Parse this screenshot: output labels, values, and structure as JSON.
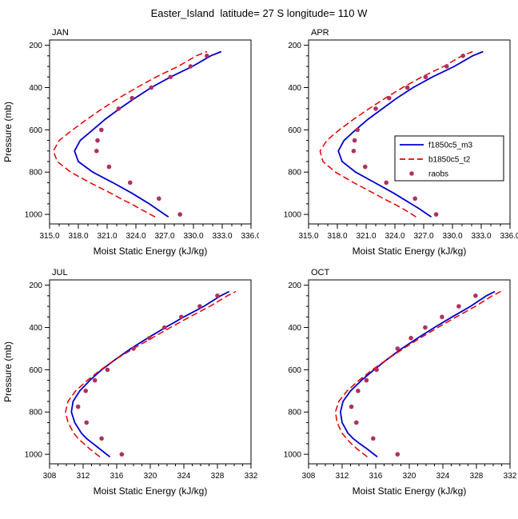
{
  "header": {
    "title": "Easter_Island  latitude= 27 S longitude= 110 W"
  },
  "colors": {
    "model": "#0000cd",
    "control": "#e60000",
    "obs": "#b03060",
    "frame": "#000000"
  },
  "legend": {
    "entries": [
      "f1850c5_m3",
      "b1850c5_t2",
      "raobs"
    ]
  },
  "chart_data": [
    {
      "type": "line",
      "title": "JAN",
      "xlabel": "Moist Static Energy (kJ/kg)",
      "ylabel": "Pressure (mb)",
      "show_ylabel": true,
      "show_legend": false,
      "xlim": [
        315,
        336
      ],
      "xticks": [
        315,
        318,
        321,
        324,
        327,
        330,
        333,
        336
      ],
      "xtick_decimals": 1,
      "xtick_minor_step": 1,
      "yticks": [
        200,
        400,
        600,
        800,
        1000
      ],
      "ytick_minor_step": 50,
      "ylim": [
        1045,
        175
      ],
      "series": [
        {
          "name": "f1850c5_m3",
          "type": "solid",
          "color": "#0000cd",
          "points": [
            [
              1012,
              327.4
            ],
            [
              1000,
              327.0
            ],
            [
              975,
              326.2
            ],
            [
              950,
              325.4
            ],
            [
              925,
              324.5
            ],
            [
              900,
              323.6
            ],
            [
              850,
              321.6
            ],
            [
              800,
              319.5
            ],
            [
              750,
              318.0
            ],
            [
              700,
              317.6
            ],
            [
              650,
              318.2
            ],
            [
              600,
              319.5
            ],
            [
              550,
              320.8
            ],
            [
              500,
              322.3
            ],
            [
              450,
              323.9
            ],
            [
              400,
              325.6
            ],
            [
              350,
              327.6
            ],
            [
              300,
              329.9
            ],
            [
              250,
              331.8
            ],
            [
              230,
              332.9
            ]
          ]
        },
        {
          "name": "b1850c5_t2",
          "type": "dashed",
          "color": "#e60000",
          "points": [
            [
              1012,
              326.0
            ],
            [
              1000,
              325.5
            ],
            [
              975,
              324.5
            ],
            [
              950,
              323.5
            ],
            [
              925,
              322.4
            ],
            [
              900,
              321.4
            ],
            [
              850,
              319.2
            ],
            [
              800,
              317.2
            ],
            [
              750,
              315.8
            ],
            [
              700,
              315.4
            ],
            [
              650,
              316.0
            ],
            [
              600,
              317.4
            ],
            [
              550,
              318.9
            ],
            [
              500,
              320.5
            ],
            [
              450,
              322.2
            ],
            [
              400,
              324.1
            ],
            [
              350,
              326.1
            ],
            [
              300,
              328.4
            ],
            [
              250,
              330.3
            ],
            [
              230,
              331.4
            ]
          ]
        },
        {
          "name": "raobs",
          "type": "dots",
          "color": "#b03060",
          "points": [
            [
              1000,
              328.6
            ],
            [
              925,
              326.4
            ],
            [
              850,
              323.4
            ],
            [
              775,
              321.2
            ],
            [
              700,
              319.9
            ],
            [
              650,
              320.0
            ],
            [
              600,
              320.4
            ],
            [
              500,
              322.2
            ],
            [
              450,
              323.6
            ],
            [
              400,
              325.6
            ],
            [
              350,
              327.6
            ],
            [
              300,
              329.7
            ],
            [
              250,
              331.4
            ]
          ]
        }
      ]
    },
    {
      "type": "line",
      "title": "APR",
      "xlabel": "Moist Static Energy (kJ/kg)",
      "ylabel": "Pressure (mb)",
      "show_ylabel": false,
      "show_legend": true,
      "xlim": [
        315,
        336
      ],
      "xticks": [
        315,
        318,
        321,
        324,
        327,
        330,
        333,
        336
      ],
      "xtick_decimals": 1,
      "xtick_minor_step": 1,
      "yticks": [
        200,
        400,
        600,
        800,
        1000
      ],
      "ytick_minor_step": 50,
      "ylim": [
        1045,
        175
      ],
      "series": [
        {
          "name": "f1850c5_m3",
          "type": "solid",
          "color": "#0000cd",
          "points": [
            [
              1012,
              327.8
            ],
            [
              1000,
              327.4
            ],
            [
              975,
              326.6
            ],
            [
              950,
              325.7
            ],
            [
              925,
              324.8
            ],
            [
              900,
              323.9
            ],
            [
              850,
              321.9
            ],
            [
              800,
              319.9
            ],
            [
              750,
              318.5
            ],
            [
              700,
              318.1
            ],
            [
              650,
              318.7
            ],
            [
              600,
              319.9
            ],
            [
              550,
              321.2
            ],
            [
              500,
              322.7
            ],
            [
              450,
              324.2
            ],
            [
              400,
              325.9
            ],
            [
              350,
              327.9
            ],
            [
              300,
              330.2
            ],
            [
              250,
              332.1
            ],
            [
              230,
              333.2
            ]
          ]
        },
        {
          "name": "b1850c5_t2",
          "type": "dashed",
          "color": "#e60000",
          "points": [
            [
              1012,
              326.2
            ],
            [
              1000,
              325.8
            ],
            [
              975,
              324.9
            ],
            [
              950,
              323.9
            ],
            [
              925,
              322.8
            ],
            [
              900,
              321.8
            ],
            [
              850,
              319.7
            ],
            [
              800,
              317.8
            ],
            [
              750,
              316.5
            ],
            [
              700,
              316.2
            ],
            [
              650,
              316.9
            ],
            [
              600,
              318.2
            ],
            [
              550,
              319.7
            ],
            [
              500,
              321.3
            ],
            [
              450,
              323.0
            ],
            [
              400,
              324.8
            ],
            [
              350,
              326.8
            ],
            [
              300,
              329.1
            ],
            [
              250,
              331.0
            ],
            [
              230,
              332.1
            ]
          ]
        },
        {
          "name": "raobs",
          "type": "dots",
          "color": "#b03060",
          "points": [
            [
              1000,
              328.3
            ],
            [
              925,
              326.1
            ],
            [
              850,
              323.1
            ],
            [
              775,
              320.9
            ],
            [
              700,
              319.7
            ],
            [
              650,
              319.8
            ],
            [
              600,
              320.1
            ],
            [
              500,
              322.0
            ],
            [
              450,
              323.4
            ],
            [
              400,
              325.3
            ],
            [
              350,
              327.2
            ],
            [
              300,
              329.4
            ],
            [
              250,
              331.1
            ]
          ]
        }
      ]
    },
    {
      "type": "line",
      "title": "JUL",
      "xlabel": "Moist Static Energy (kJ/kg)",
      "ylabel": "Pressure (mb)",
      "show_ylabel": true,
      "show_legend": false,
      "xlim": [
        308,
        332
      ],
      "xticks": [
        308,
        312,
        316,
        320,
        324,
        328,
        332
      ],
      "xtick_decimals": 0,
      "xtick_minor_step": 1,
      "yticks": [
        200,
        400,
        600,
        800,
        1000
      ],
      "ytick_minor_step": 50,
      "ylim": [
        1045,
        175
      ],
      "series": [
        {
          "name": "f1850c5_m3",
          "type": "solid",
          "color": "#0000cd",
          "points": [
            [
              1012,
              315.2
            ],
            [
              1000,
              314.8
            ],
            [
              975,
              314.0
            ],
            [
              950,
              313.2
            ],
            [
              925,
              312.4
            ],
            [
              900,
              311.8
            ],
            [
              850,
              311.0
            ],
            [
              800,
              310.6
            ],
            [
              750,
              310.8
            ],
            [
              700,
              311.6
            ],
            [
              650,
              312.8
            ],
            [
              600,
              314.2
            ],
            [
              550,
              315.9
            ],
            [
              500,
              317.7
            ],
            [
              450,
              319.7
            ],
            [
              400,
              321.8
            ],
            [
              350,
              324.0
            ],
            [
              300,
              326.4
            ],
            [
              250,
              328.4
            ],
            [
              230,
              329.4
            ]
          ]
        },
        {
          "name": "b1850c5_t2",
          "type": "dashed",
          "color": "#e60000",
          "points": [
            [
              1012,
              314.0
            ],
            [
              1000,
              313.6
            ],
            [
              975,
              312.8
            ],
            [
              950,
              312.1
            ],
            [
              925,
              311.4
            ],
            [
              900,
              310.9
            ],
            [
              850,
              310.2
            ],
            [
              800,
              309.9
            ],
            [
              750,
              310.2
            ],
            [
              700,
              311.1
            ],
            [
              650,
              312.5
            ],
            [
              600,
              314.1
            ],
            [
              550,
              315.9
            ],
            [
              500,
              318.0
            ],
            [
              450,
              320.2
            ],
            [
              400,
              322.4
            ],
            [
              350,
              324.7
            ],
            [
              300,
              327.1
            ],
            [
              250,
              329.2
            ],
            [
              230,
              330.2
            ]
          ]
        },
        {
          "name": "raobs",
          "type": "dots",
          "color": "#b03060",
          "points": [
            [
              1000,
              316.6
            ],
            [
              925,
              314.2
            ],
            [
              850,
              312.4
            ],
            [
              775,
              311.4
            ],
            [
              700,
              312.3
            ],
            [
              650,
              313.4
            ],
            [
              600,
              314.9
            ],
            [
              500,
              318.0
            ],
            [
              450,
              319.9
            ],
            [
              400,
              321.7
            ],
            [
              350,
              323.7
            ],
            [
              300,
              325.9
            ],
            [
              250,
              328.0
            ]
          ]
        }
      ]
    },
    {
      "type": "line",
      "title": "OCT",
      "xlabel": "Moist Static Energy (kJ/kg)",
      "ylabel": "Pressure (mb)",
      "show_ylabel": false,
      "show_legend": false,
      "xlim": [
        308,
        332
      ],
      "xticks": [
        308,
        312,
        316,
        320,
        324,
        328,
        332
      ],
      "xtick_decimals": 0,
      "xtick_minor_step": 1,
      "yticks": [
        200,
        400,
        600,
        800,
        1000
      ],
      "ytick_minor_step": 50,
      "ylim": [
        1045,
        175
      ],
      "series": [
        {
          "name": "f1850c5_m3",
          "type": "solid",
          "color": "#0000cd",
          "points": [
            [
              1012,
              316.2
            ],
            [
              1000,
              315.8
            ],
            [
              975,
              315.0
            ],
            [
              950,
              314.1
            ],
            [
              925,
              313.3
            ],
            [
              900,
              312.7
            ],
            [
              850,
              312.0
            ],
            [
              800,
              311.8
            ],
            [
              750,
              312.1
            ],
            [
              700,
              313.0
            ],
            [
              650,
              314.3
            ],
            [
              600,
              315.8
            ],
            [
              550,
              317.4
            ],
            [
              500,
              319.1
            ],
            [
              450,
              321.0
            ],
            [
              400,
              323.0
            ],
            [
              350,
              325.1
            ],
            [
              300,
              327.3
            ],
            [
              250,
              329.2
            ],
            [
              230,
              330.2
            ]
          ]
        },
        {
          "name": "b1850c5_t2",
          "type": "dashed",
          "color": "#e60000",
          "points": [
            [
              1012,
              315.0
            ],
            [
              1000,
              314.6
            ],
            [
              975,
              313.8
            ],
            [
              950,
              313.1
            ],
            [
              925,
              312.5
            ],
            [
              900,
              312.0
            ],
            [
              850,
              311.4
            ],
            [
              800,
              311.2
            ],
            [
              750,
              311.6
            ],
            [
              700,
              312.6
            ],
            [
              650,
              314.0
            ],
            [
              600,
              315.6
            ],
            [
              550,
              317.4
            ],
            [
              500,
              319.3
            ],
            [
              450,
              321.3
            ],
            [
              400,
              323.4
            ],
            [
              350,
              325.6
            ],
            [
              300,
              327.9
            ],
            [
              250,
              329.9
            ],
            [
              230,
              330.9
            ]
          ]
        },
        {
          "name": "raobs",
          "type": "dots",
          "color": "#b03060",
          "points": [
            [
              1000,
              318.6
            ],
            [
              925,
              315.7
            ],
            [
              850,
              313.7
            ],
            [
              775,
              313.1
            ],
            [
              700,
              313.9
            ],
            [
              650,
              314.9
            ],
            [
              600,
              316.1
            ],
            [
              500,
              318.6
            ],
            [
              450,
              320.2
            ],
            [
              400,
              321.9
            ],
            [
              350,
              323.9
            ],
            [
              300,
              325.9
            ],
            [
              250,
              327.9
            ]
          ]
        }
      ]
    }
  ]
}
